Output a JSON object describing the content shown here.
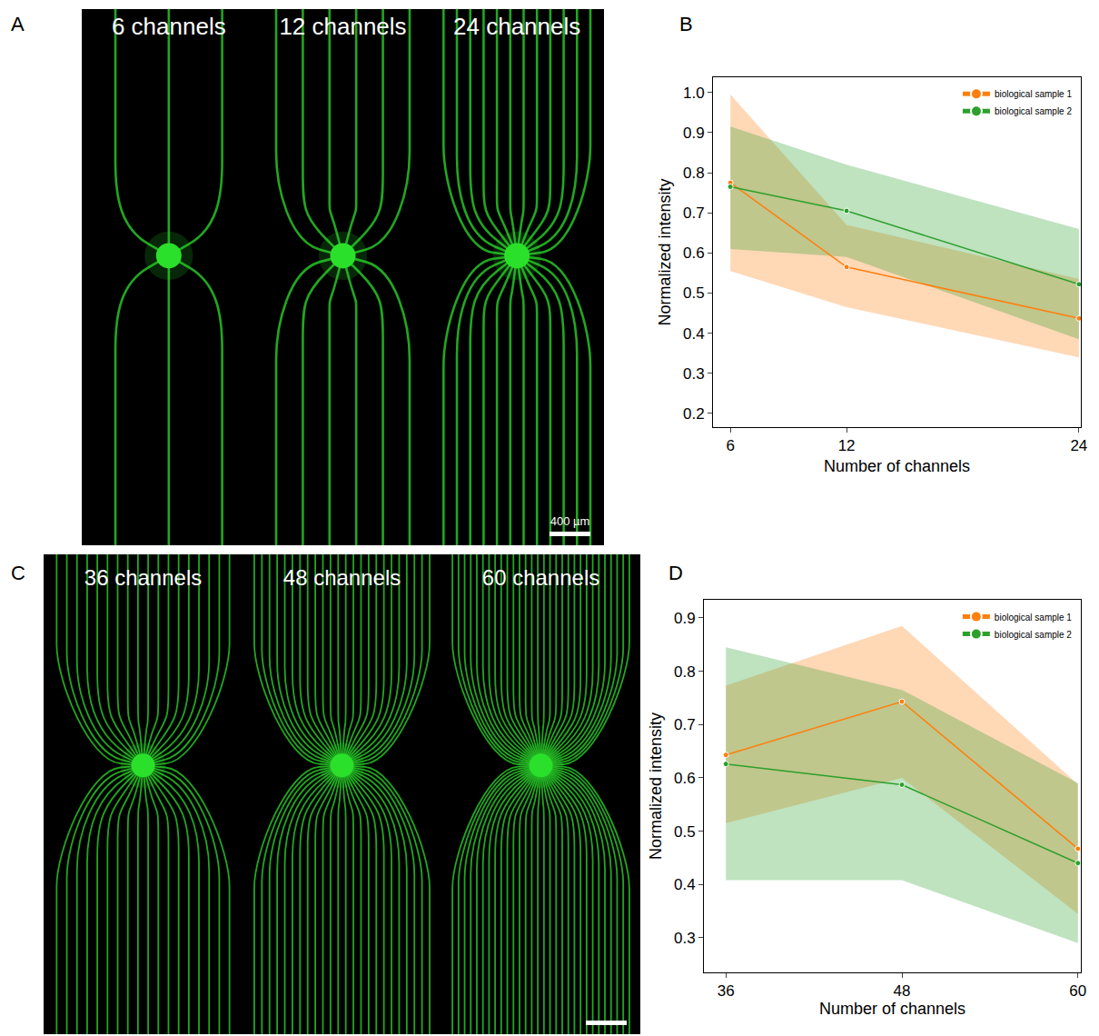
{
  "panel_letters": [
    "A",
    "B",
    "C",
    "D"
  ],
  "images": [
    {
      "panels": [
        {
          "label": "6 channels",
          "channels": 6
        },
        {
          "label": "12 channels",
          "channels": 12
        },
        {
          "label": "24 channels",
          "channels": 24
        }
      ],
      "scale_bar": "400 µm"
    },
    {
      "panels": [
        {
          "label": "36 channels",
          "channels": 36
        },
        {
          "label": "48 channels",
          "channels": 48
        },
        {
          "label": "60 channels",
          "channels": 60
        }
      ]
    }
  ],
  "chart_data": [
    {
      "type": "line",
      "x": [
        6,
        12,
        24
      ],
      "xlim": [
        5.1,
        24.1
      ],
      "xticks": [
        6,
        12,
        24
      ],
      "ylim": [
        0.166,
        1.038
      ],
      "yticks": [
        0.2,
        0.3,
        0.4,
        0.5,
        0.6,
        0.7,
        0.8,
        0.9,
        {
          "value": 1.0,
          "label": "1.0"
        }
      ],
      "x_label": "Number of channels",
      "y_label": "Normalized intensity",
      "legend": "upper right",
      "grid": false,
      "marker": "circle",
      "series": [
        {
          "name": "biological sample 1",
          "color": "#ff7f0e",
          "values": [
            0.775,
            0.565,
            0.437
          ],
          "lower": [
            0.555,
            0.465,
            0.34
          ],
          "upper": [
            0.995,
            0.67,
            0.535
          ]
        },
        {
          "name": "biological sample 2",
          "color": "#2ca02c",
          "values": [
            0.765,
            0.705,
            0.522
          ],
          "lower": [
            0.61,
            0.59,
            0.385
          ],
          "upper": [
            0.915,
            0.82,
            0.66
          ]
        }
      ]
    },
    {
      "type": "line",
      "x": [
        36,
        48,
        60
      ],
      "xlim": [
        34.5,
        60.2
      ],
      "xticks": [
        36,
        48,
        60
      ],
      "ylim": [
        0.235,
        0.934
      ],
      "yticks": [
        0.3,
        0.4,
        0.5,
        0.6,
        0.7,
        0.8,
        0.9
      ],
      "x_label": "Number of channels",
      "y_label": "Normalized intensity",
      "legend": "upper right",
      "grid": false,
      "marker": "circle",
      "series": [
        {
          "name": "biological sample 1",
          "color": "#ff7f0e",
          "values": [
            0.643,
            0.743,
            0.467
          ],
          "lower": [
            0.515,
            0.6,
            0.345
          ],
          "upper": [
            0.773,
            0.885,
            0.588
          ]
        },
        {
          "name": "biological sample 2",
          "color": "#2ca02c",
          "values": [
            0.626,
            0.587,
            0.44
          ],
          "lower": [
            0.408,
            0.408,
            0.29
          ],
          "upper": [
            0.845,
            0.765,
            0.59
          ]
        }
      ]
    }
  ]
}
